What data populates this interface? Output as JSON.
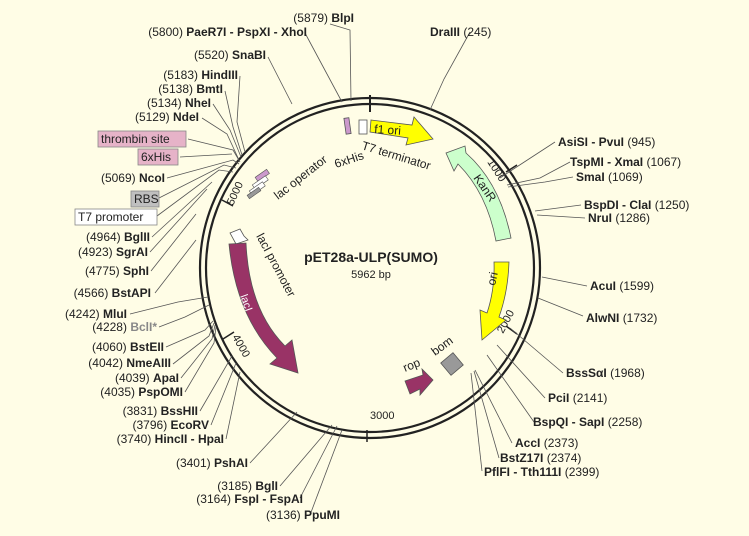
{
  "plasmid": {
    "name": "pET28a-ULP(SUMO)",
    "length_label": "5962 bp"
  },
  "ticks": [
    {
      "label": "1000"
    },
    {
      "label": "2000"
    },
    {
      "label": "3000"
    },
    {
      "label": "4000"
    },
    {
      "label": "5000"
    }
  ],
  "features": [
    {
      "label": "f1 ori",
      "color": "#ffff00"
    },
    {
      "label": "KanR",
      "color": "#ccffcc"
    },
    {
      "label": "ori",
      "color": "#ffff00"
    },
    {
      "label": "lacI",
      "color": "#993366"
    },
    {
      "label": "lacI promoter",
      "color": "#ffffff"
    },
    {
      "label": "rop",
      "color": "#993366"
    },
    {
      "label": "bom",
      "color": "#999999"
    },
    {
      "label": "T7 terminator",
      "color": "#ffffff"
    },
    {
      "label": "6xHis",
      "color": "#cc99cc"
    },
    {
      "label": "lac operator",
      "color": "#ffffff"
    }
  ],
  "boxed_labels": [
    {
      "label": "thrombin site",
      "color": "#e6b3c8"
    },
    {
      "label": "6xHis",
      "color": "#e6b3c8"
    },
    {
      "label": "RBS",
      "color": "#bfbfbf"
    },
    {
      "label": "T7 promoter",
      "color": "#ffffff"
    }
  ],
  "enzymes": [
    {
      "pos": "(5879)",
      "name": "BlpI"
    },
    {
      "pos": "(5800)",
      "name": "PaeR7I - PspXI - XhoI"
    },
    {
      "pos": "(5520)",
      "name": "SnaBI"
    },
    {
      "pos": "(5183)",
      "name": "HindIII"
    },
    {
      "pos": "(5138)",
      "name": "BmtI"
    },
    {
      "pos": "(5134)",
      "name": "NheI"
    },
    {
      "pos": "(5129)",
      "name": "NdeI"
    },
    {
      "pos": "(5069)",
      "name": "NcoI"
    },
    {
      "pos": "(4964)",
      "name": "BglII"
    },
    {
      "pos": "(4923)",
      "name": "SgrAI"
    },
    {
      "pos": "(4775)",
      "name": "SphI"
    },
    {
      "pos": "(4566)",
      "name": "BstAPI"
    },
    {
      "pos": "(4242)",
      "name": "MluI"
    },
    {
      "pos": "(4228)",
      "name": "BclI*"
    },
    {
      "pos": "(4060)",
      "name": "BstEII"
    },
    {
      "pos": "(4042)",
      "name": "NmeAIII"
    },
    {
      "pos": "(4039)",
      "name": "ApaI"
    },
    {
      "pos": "(4035)",
      "name": "PspOMI"
    },
    {
      "pos": "(3831)",
      "name": "BssHII"
    },
    {
      "pos": "(3796)",
      "name": "EcoRV"
    },
    {
      "pos": "(3740)",
      "name": "HincII - HpaI"
    },
    {
      "pos": "(3401)",
      "name": "PshAI"
    },
    {
      "pos": "(3185)",
      "name": "BglI"
    },
    {
      "pos": "(3164)",
      "name": "FspI - FspAI"
    },
    {
      "pos": "(3136)",
      "name": "PpuMI"
    },
    {
      "name": "DraIII",
      "pos": "(245)"
    },
    {
      "name": "AsiSI - PvuI",
      "pos": "(945)"
    },
    {
      "name": "TspMI - XmaI",
      "pos": "(1067)"
    },
    {
      "name": "SmaI",
      "pos": "(1069)"
    },
    {
      "name": "BspDI - ClaI",
      "pos": "(1250)"
    },
    {
      "name": "NruI",
      "pos": "(1286)"
    },
    {
      "name": "AcuI",
      "pos": "(1599)"
    },
    {
      "name": "AlwNI",
      "pos": "(1732)"
    },
    {
      "name": "BssSαI",
      "pos": "(1968)"
    },
    {
      "name": "PciI",
      "pos": "(2141)"
    },
    {
      "name": "BspQI - SapI",
      "pos": "(2258)"
    },
    {
      "name": "AccI",
      "pos": "(2373)"
    },
    {
      "name": "BstZ17I",
      "pos": "(2374)"
    },
    {
      "name": "PflFI - Tth111I",
      "pos": "(2399)"
    }
  ]
}
